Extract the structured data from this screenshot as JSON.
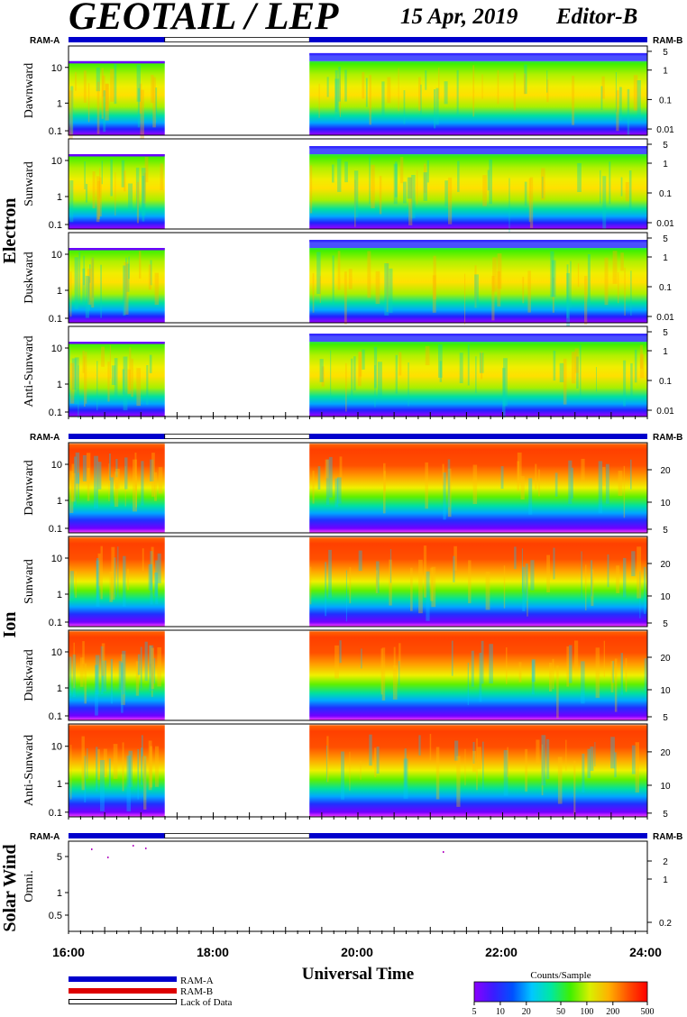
{
  "header": {
    "title": "GEOTAIL / LEP",
    "date": "15 Apr, 2019",
    "editor": "Editor-B"
  },
  "labels": {
    "ram_a": "RAM-A",
    "ram_b": "RAM-B",
    "x_axis": "Universal Time",
    "colorbar_title": "Counts/Sample"
  },
  "legend": {
    "ram_a": "RAM-A",
    "ram_b": "RAM-B",
    "lack": "Lack of Data"
  },
  "colors": {
    "ram_a": "#0000cc",
    "ram_b": "#dd0000",
    "colormap": [
      "#8b00ff",
      "#3a1cff",
      "#0050ff",
      "#00c8ff",
      "#00e8a0",
      "#40f000",
      "#d8f000",
      "#ffb000",
      "#ff5000",
      "#ff0000"
    ]
  },
  "chart_data": {
    "type": "heatmap",
    "x_ticks": [
      "16:00",
      "18:00",
      "20:00",
      "22:00",
      "24:00"
    ],
    "x_range_hours": [
      16,
      24
    ],
    "data_gap_hours": [
      17.33,
      19.33
    ],
    "groups": [
      {
        "name": "Electron",
        "left_ticks": [
          "10",
          "1",
          "0.1"
        ],
        "panels": [
          {
            "label": "Dawnward",
            "right_ticks": [
              "5",
              "1",
              "0.1",
              "0.01"
            ]
          },
          {
            "label": "Sunward",
            "right_ticks": [
              "5",
              "1",
              "0.1",
              "0.01"
            ]
          },
          {
            "label": "Duskward",
            "right_ticks": [
              "5",
              "1",
              "0.1",
              "0.01"
            ]
          },
          {
            "label": "Anti-Sunward",
            "right_ticks": [
              "5",
              "1",
              "0.1",
              "0.01"
            ]
          }
        ]
      },
      {
        "name": "Ion",
        "left_ticks": [
          "10",
          "1",
          "0.1"
        ],
        "panels": [
          {
            "label": "Dawnward",
            "right_ticks": [
              "20",
              "10",
              "5"
            ]
          },
          {
            "label": "Sunward",
            "right_ticks": [
              "20",
              "10",
              "5"
            ]
          },
          {
            "label": "Duskward",
            "right_ticks": [
              "20",
              "10",
              "5"
            ]
          },
          {
            "label": "Anti-Sunward",
            "right_ticks": [
              "20",
              "10",
              "5"
            ]
          }
        ]
      },
      {
        "name": "Solar Wind",
        "panels": [
          {
            "label": "Omni.",
            "left_ticks": [
              "5",
              "1",
              "0.5"
            ],
            "right_ticks": [
              "2",
              "1",
              "0.2"
            ]
          }
        ]
      }
    ],
    "colorbar": {
      "label": "Counts/Sample",
      "ticks": [
        "5",
        "10",
        "20",
        "50",
        "100",
        "200",
        "500"
      ],
      "scale": "log"
    }
  }
}
